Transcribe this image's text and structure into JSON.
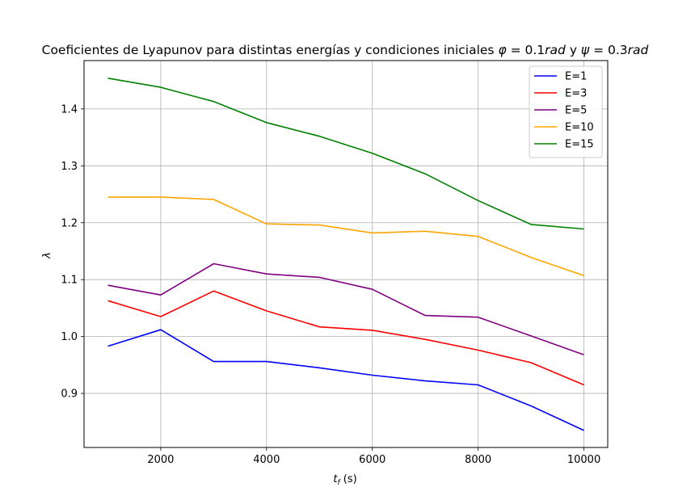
{
  "chart_data": {
    "type": "line",
    "title": "Coeficientes de Lyapunov para distintas energías y condiciones iniciales φ = 0.1rad y ψ = 0.3rad",
    "xlabel": "t_f (s)",
    "ylabel": "λ",
    "x": [
      1000,
      2000,
      3000,
      4000,
      5000,
      6000,
      7000,
      8000,
      9000,
      10000
    ],
    "xlim": [
      550,
      10450
    ],
    "ylim": [
      0.805,
      1.485
    ],
    "xticks": [
      "2000",
      "4000",
      "6000",
      "8000",
      "10000"
    ],
    "yticks": [
      "0.9",
      "1.0",
      "1.1",
      "1.2",
      "1.3",
      "1.4"
    ],
    "grid": true,
    "legend_position": "top-right",
    "series": [
      {
        "name": "E=1",
        "color": "#0000ff",
        "values": [
          0.983,
          1.012,
          0.956,
          0.956,
          0.945,
          0.932,
          0.922,
          0.915,
          0.878,
          0.835
        ]
      },
      {
        "name": "E=3",
        "color": "#ff0000",
        "values": [
          1.063,
          1.035,
          1.08,
          1.045,
          1.017,
          1.011,
          0.995,
          0.976,
          0.954,
          0.915
        ]
      },
      {
        "name": "E=5",
        "color": "#800080",
        "values": [
          1.09,
          1.073,
          1.128,
          1.11,
          1.104,
          1.083,
          1.037,
          1.034,
          1.001,
          0.968
        ]
      },
      {
        "name": "E=10",
        "color": "#ffa500",
        "values": [
          1.245,
          1.245,
          1.241,
          1.198,
          1.196,
          1.182,
          1.185,
          1.176,
          1.139,
          1.107
        ]
      },
      {
        "name": "E=15",
        "color": "#008000",
        "values": [
          1.454,
          1.438,
          1.413,
          1.376,
          1.352,
          1.322,
          1.286,
          1.239,
          1.197,
          1.189
        ]
      }
    ]
  }
}
